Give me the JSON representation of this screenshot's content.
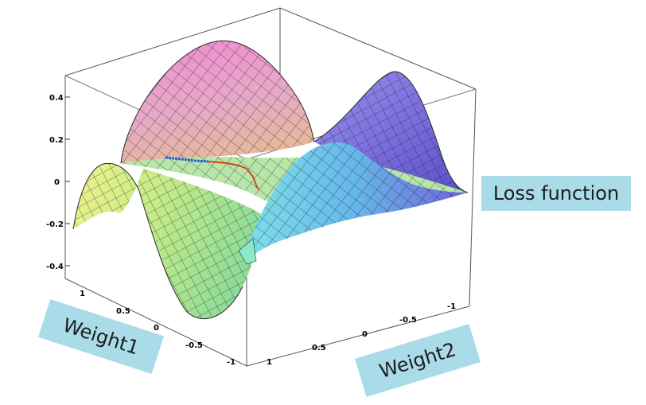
{
  "callouts": {
    "loss": "Loss function",
    "weight1": "Weight1",
    "weight2": "Weight2"
  },
  "z_axis": {
    "ticks": [
      "0.4",
      "0.2",
      "0",
      "-0.2",
      "-0.4"
    ]
  },
  "weight1_axis": {
    "ticks": [
      "1",
      "0.5",
      "0",
      "-0.5",
      "-1"
    ]
  },
  "weight2_axis": {
    "ticks": [
      "1",
      "0.5",
      "0",
      "-0.5",
      "-1"
    ]
  },
  "colors": {
    "surface_yellow": "#e9f08a",
    "surface_green": "#a6e38a",
    "surface_cyan": "#62c3e6",
    "surface_purple": "#7c6fe0",
    "surface_pink": "#ec87cc",
    "path_blue": "#2a5bd7",
    "path_red": "#d8421d",
    "callout_bg": "#a9dbe8"
  }
}
